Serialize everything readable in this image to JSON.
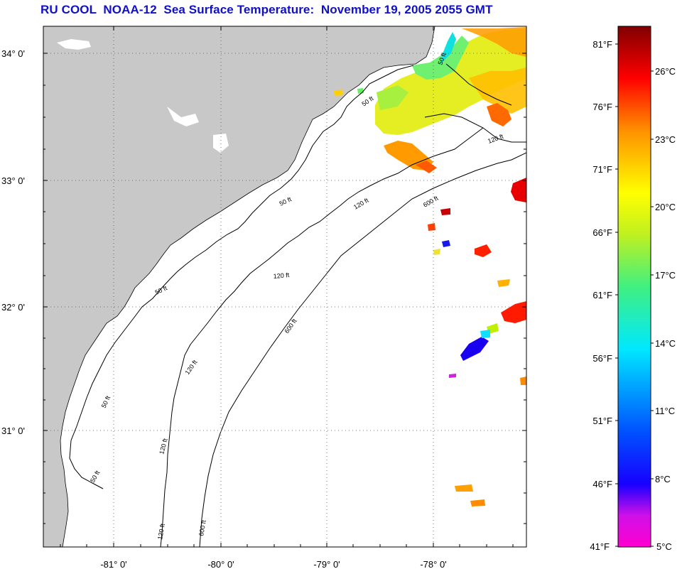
{
  "title": "RU COOL  NOAA-12  Sea Surface Temperature:  November 19, 2005 2055 GMT",
  "latitude_labels": [
    "34° 0'",
    "33° 0'",
    "32° 0'",
    "31° 0'"
  ],
  "longitude_labels": [
    "-81° 0'",
    "-80° 0'",
    "-79° 0'",
    "-78° 0'"
  ],
  "contour_labels": {
    "c50": "50 ft",
    "c120": "120 ft",
    "c600": "600 ft"
  },
  "colorbar": {
    "fahrenheit_labels": [
      "81°F",
      "76°F",
      "71°F",
      "66°F",
      "61°F",
      "56°F",
      "51°F",
      "46°F",
      "41°F"
    ],
    "celsius_labels": [
      "26°C",
      "23°C",
      "20°C",
      "17°C",
      "14°C",
      "11°C",
      "8°C",
      "5°C"
    ]
  },
  "colors": {
    "title": "#1010c8",
    "land": "#c8c8c8",
    "ocean_no_data": "#ffffff"
  }
}
